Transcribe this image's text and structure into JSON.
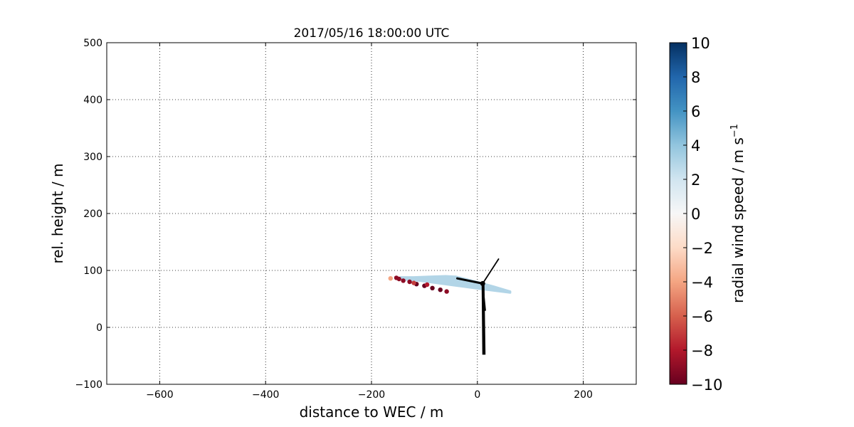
{
  "chart_data": {
    "type": "scatter",
    "title": "2017/05/16 18:00:00 UTC",
    "xlabel": "distance to WEC / m",
    "ylabel": "rel. height / m",
    "xlim": [
      -700,
      300
    ],
    "ylim": [
      -100,
      500
    ],
    "x_ticks": [
      -600,
      -400,
      -200,
      0,
      200
    ],
    "y_ticks": [
      -100,
      0,
      100,
      200,
      300,
      400,
      500
    ],
    "x_tick_labels": [
      "−600",
      "−400",
      "−200",
      "0",
      "200"
    ],
    "y_tick_labels": [
      "−100",
      "0",
      "100",
      "200",
      "300",
      "400",
      "500"
    ],
    "grid": true,
    "colorbar": {
      "label": "radial wind speed / m s",
      "label_exponent": "−1",
      "range": [
        -10,
        10
      ],
      "ticks": [
        -10,
        -8,
        -6,
        -4,
        -2,
        0,
        2,
        4,
        6,
        8,
        10
      ],
      "tick_labels": [
        "−10",
        "−8",
        "−6",
        "−4",
        "−2",
        "0",
        "2",
        "4",
        "6",
        "8",
        "10"
      ],
      "colormap": "RdBu",
      "colors": [
        "#67001f",
        "#b2182b",
        "#d6604d",
        "#f4a582",
        "#fddbc7",
        "#f7f7f7",
        "#d1e5f0",
        "#92c5de",
        "#4393c3",
        "#2166ac",
        "#053061"
      ]
    },
    "scan_upper_edge": [
      [
        -145,
        88
      ],
      [
        -120,
        88
      ],
      [
        -90,
        89
      ],
      [
        -60,
        90
      ],
      [
        -40,
        89
      ],
      [
        -10,
        82
      ],
      [
        30,
        72
      ],
      [
        62,
        63
      ]
    ],
    "scan_lower_edge": [
      [
        -140,
        84
      ],
      [
        -110,
        82
      ],
      [
        -70,
        77
      ],
      [
        -30,
        72
      ],
      [
        10,
        67
      ],
      [
        62,
        61
      ]
    ],
    "scan_value": 3,
    "points": [
      {
        "x": -164,
        "y": 86,
        "v": -4
      },
      {
        "x": -153,
        "y": 87,
        "v": -9
      },
      {
        "x": -148,
        "y": 85,
        "v": -9
      },
      {
        "x": -140,
        "y": 82,
        "v": -9
      },
      {
        "x": -128,
        "y": 80,
        "v": -9
      },
      {
        "x": -115,
        "y": 76,
        "v": -10
      },
      {
        "x": -100,
        "y": 73,
        "v": -10
      },
      {
        "x": -85,
        "y": 69,
        "v": -10
      },
      {
        "x": -70,
        "y": 66,
        "v": -10
      },
      {
        "x": -58,
        "y": 63,
        "v": -9
      },
      {
        "x": -120,
        "y": 78,
        "v": -7
      },
      {
        "x": -95,
        "y": 75,
        "v": -8
      }
    ],
    "turbine": {
      "hub": [
        10,
        77
      ],
      "tower_base": [
        12,
        -48
      ],
      "blade_tips": [
        [
          40,
          120
        ],
        [
          -38,
          86
        ],
        [
          15,
          30
        ]
      ]
    }
  }
}
